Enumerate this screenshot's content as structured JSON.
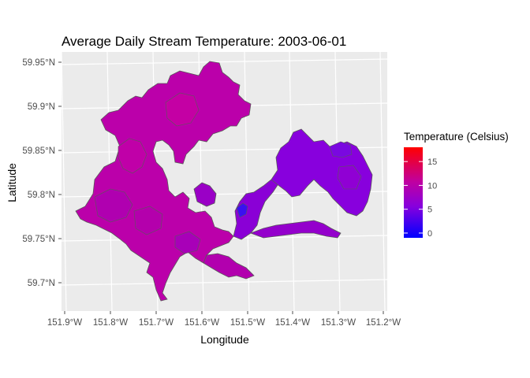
{
  "chart_data": {
    "type": "choropleth-map",
    "title": "Average Daily Stream Temperature: 2003-06-01",
    "xlabel": "Longitude",
    "ylabel": "Latitude",
    "x_ticks": [
      "151.9°W",
      "151.8°W",
      "151.7°W",
      "151.6°W",
      "151.5°W",
      "151.4°W",
      "151.3°W",
      "151.2°W"
    ],
    "y_ticks": [
      "59.95°N",
      "59.9°N",
      "59.85°N",
      "59.8°N",
      "59.75°N",
      "59.7°N"
    ],
    "legend": {
      "title": "Temperature (Celsius)",
      "position": "right",
      "ticks": [
        "15",
        "10",
        "5",
        "0"
      ],
      "range": [
        -1,
        18
      ],
      "color_low": "#0000ff",
      "color_high": "#ff0000"
    },
    "panel_background": "#ebebeb",
    "grid": true,
    "region_border_color": "#5a5a5a",
    "dominant_region_color": "#bb00aa",
    "eastern_region_color": "#8800dd"
  }
}
